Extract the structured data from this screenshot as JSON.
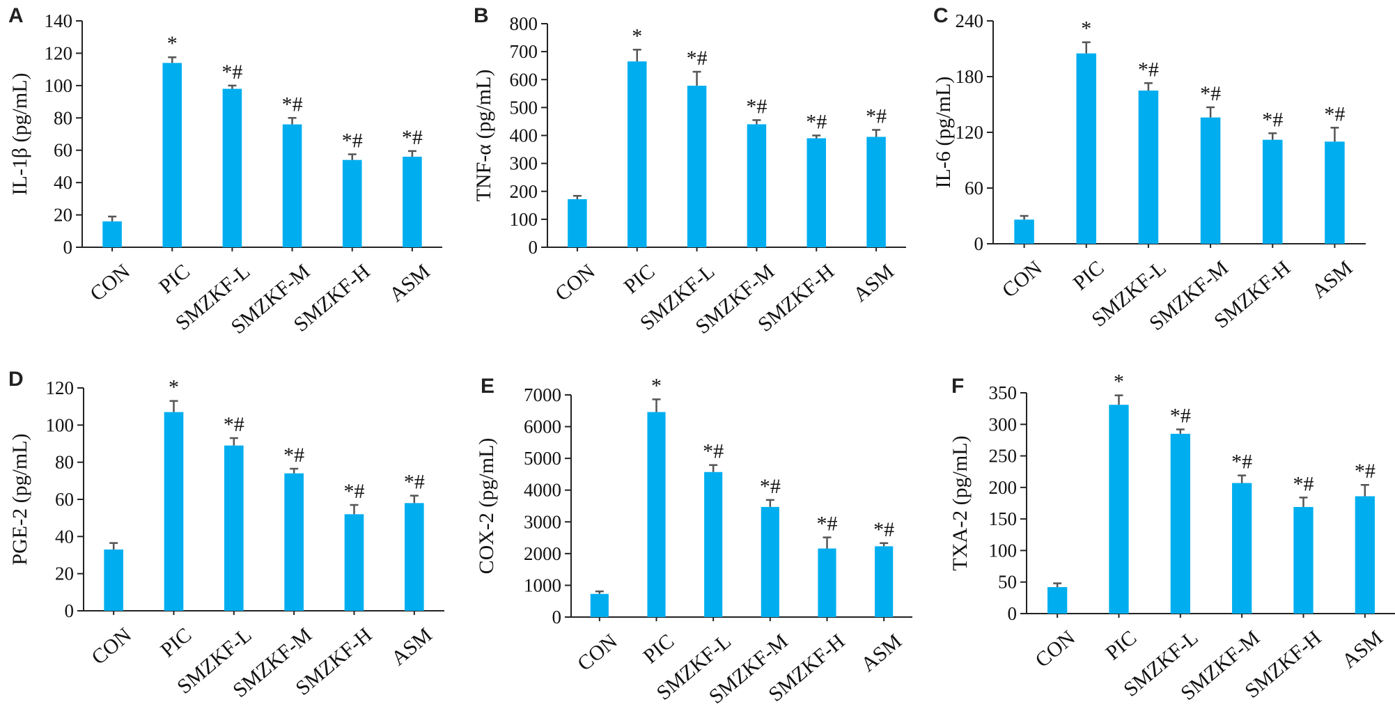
{
  "colors": {
    "bar": "#00AEEF",
    "error_bar": "#555555",
    "axis": "#222222"
  },
  "chart_data": [
    {
      "panel": "A",
      "type": "bar",
      "ylabel": "IL-1β (pg/mL)",
      "categories": [
        "CON",
        "PIC",
        "SMZKF-L",
        "SMZKF-M",
        "SMZKF-H",
        "ASM"
      ],
      "values": [
        16,
        114,
        98,
        76,
        54,
        56
      ],
      "errors": [
        3,
        3.5,
        2,
        4,
        3.5,
        3.5
      ],
      "annotations": [
        "",
        "*",
        "*#",
        "*#",
        "*#",
        "*#"
      ],
      "ylim": [
        0,
        140
      ],
      "yticks": [
        0,
        20,
        40,
        60,
        80,
        100,
        120,
        140
      ]
    },
    {
      "panel": "B",
      "type": "bar",
      "ylabel": "TNF-α (pg/mL)",
      "categories": [
        "CON",
        "PIC",
        "SMZKF-L",
        "SMZKF-M",
        "SMZKF-H",
        "ASM"
      ],
      "values": [
        172,
        665,
        578,
        440,
        390,
        395
      ],
      "errors": [
        12,
        42,
        50,
        15,
        10,
        25
      ],
      "annotations": [
        "",
        "*",
        "*#",
        "*#",
        "*#",
        "*#"
      ],
      "ylim": [
        0,
        800
      ],
      "yticks": [
        0,
        100,
        200,
        300,
        400,
        500,
        600,
        700,
        800
      ]
    },
    {
      "panel": "C",
      "type": "bar",
      "ylabel": "IL-6 (pg/mL)",
      "categories": [
        "CON",
        "PIC",
        "SMZKF-L",
        "SMZKF-M",
        "SMZKF-H",
        "ASM"
      ],
      "values": [
        26,
        205,
        165,
        136,
        112,
        110
      ],
      "errors": [
        4,
        12,
        8,
        11,
        7,
        15
      ],
      "annotations": [
        "",
        "*",
        "*#",
        "*#",
        "*#",
        "*#"
      ],
      "ylim": [
        0,
        240
      ],
      "yticks": [
        0,
        60,
        120,
        180,
        240
      ]
    },
    {
      "panel": "D",
      "type": "bar",
      "ylabel": "PGE-2 (pg/mL)",
      "categories": [
        "CON",
        "PIC",
        "SMZKF-L",
        "SMZKF-M",
        "SMZKF-H",
        "ASM"
      ],
      "values": [
        33,
        107,
        89,
        74,
        52,
        58
      ],
      "errors": [
        3.5,
        6,
        4,
        2.5,
        5,
        4
      ],
      "annotations": [
        "",
        "*",
        "*#",
        "*#",
        "*#",
        "*#"
      ],
      "ylim": [
        0,
        120
      ],
      "yticks": [
        0,
        20,
        40,
        60,
        80,
        100,
        120
      ]
    },
    {
      "panel": "E",
      "type": "bar",
      "ylabel": "COX-2 (pg/mL)",
      "categories": [
        "CON",
        "PIC",
        "SMZKF-L",
        "SMZKF-M",
        "SMZKF-H",
        "ASM"
      ],
      "values": [
        730,
        6460,
        4570,
        3470,
        2160,
        2230
      ],
      "errors": [
        80,
        400,
        220,
        220,
        350,
        100
      ],
      "annotations": [
        "",
        "*",
        "*#",
        "*#",
        "*#",
        "*#"
      ],
      "ylim": [
        0,
        7000
      ],
      "yticks": [
        0,
        1000,
        2000,
        3000,
        4000,
        5000,
        6000,
        7000
      ]
    },
    {
      "panel": "F",
      "type": "bar",
      "ylabel": "TXA-2 (pg/mL)",
      "categories": [
        "CON",
        "PIC",
        "SMZKF-L",
        "SMZKF-M",
        "SMZKF-H",
        "ASM"
      ],
      "values": [
        42,
        331,
        285,
        207,
        169,
        186
      ],
      "errors": [
        6,
        15,
        7,
        12,
        15,
        18
      ],
      "annotations": [
        "",
        "*",
        "*#",
        "*#",
        "*#",
        "*#"
      ],
      "ylim": [
        0,
        350
      ],
      "yticks": [
        0,
        50,
        100,
        150,
        200,
        250,
        300,
        350
      ]
    }
  ]
}
